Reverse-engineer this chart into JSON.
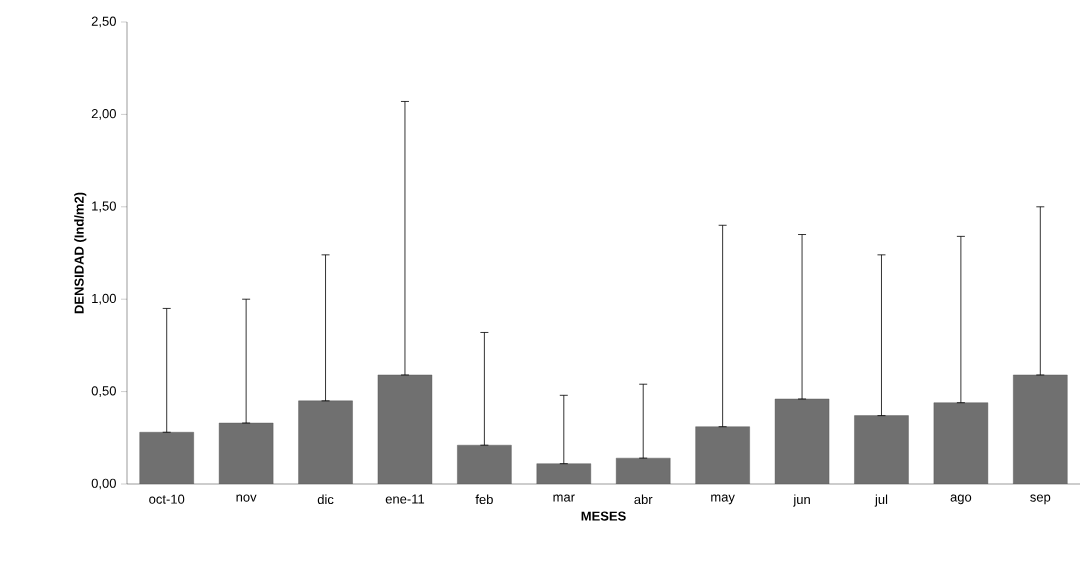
{
  "chart_data": {
    "type": "bar",
    "xlabel": "MESES",
    "ylabel": "DENSIDAD (Ind/m2)",
    "categories": [
      "oct-10",
      "nov",
      "dic",
      "ene-11",
      "feb",
      "mar",
      "abr",
      "may",
      "jun",
      "jul",
      "ago",
      "sep"
    ],
    "values": [
      0.28,
      0.33,
      0.45,
      0.59,
      0.21,
      0.11,
      0.14,
      0.31,
      0.46,
      0.37,
      0.44,
      0.59
    ],
    "errors": [
      [
        0.28,
        0.95
      ],
      [
        0.33,
        1.0
      ],
      [
        0.45,
        1.24
      ],
      [
        0.59,
        2.07
      ],
      [
        0.21,
        0.82
      ],
      [
        0.11,
        0.48
      ],
      [
        0.14,
        0.54
      ],
      [
        0.31,
        1.4
      ],
      [
        0.46,
        1.35
      ],
      [
        0.37,
        1.24
      ],
      [
        0.44,
        1.34
      ],
      [
        0.59,
        1.5
      ]
    ],
    "color": "#707070",
    "ylim": [
      0,
      2.5
    ],
    "yticks": [
      {
        "value": 0,
        "label": "0,00"
      },
      {
        "value": 0.5,
        "label": "0,50"
      },
      {
        "value": 1,
        "label": "1,00"
      },
      {
        "value": 1.5,
        "label": "1,50"
      },
      {
        "value": 2,
        "label": "2,00"
      },
      {
        "value": 2.5,
        "label": "2,50"
      }
    ],
    "grid": false
  }
}
